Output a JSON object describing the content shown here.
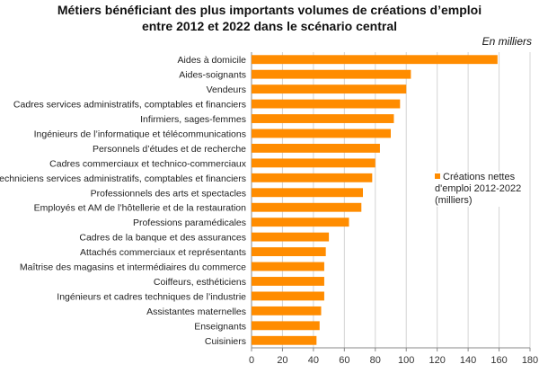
{
  "chart_data": {
    "type": "bar",
    "orientation": "horizontal",
    "title": [
      "Métiers bénéficiant des plus importants volumes de créations d’emploi",
      "entre 2012 et 2022 dans le scénario central"
    ],
    "unit_note": "En milliers",
    "xlabel": "",
    "ylabel": "",
    "xlim": [
      0,
      180
    ],
    "xticks": [
      "0",
      "20",
      "40",
      "60",
      "80",
      "100",
      "120",
      "140",
      "160",
      "180"
    ],
    "grid": true,
    "legend": {
      "position": "right",
      "label": "Créations nettes d'emploi 2012-2022 (milliers)"
    },
    "color": "#FF8C00",
    "categories": [
      "Aides à domicile",
      "Aides-soignants",
      "Vendeurs",
      "Cadres services administratifs, comptables et financiers",
      "Infirmiers, sages-femmes",
      "Ingénieurs de l’informatique et télécommunications",
      "Personnels d’études et de recherche",
      "Cadres commerciaux et technico-commerciaux",
      "Techniciens services administratifs, comptables et financiers",
      "Professionnels des arts et spectacles",
      "Employés et AM de l’hôtellerie et de la restauration",
      "Professions paramédicales",
      "Cadres de la banque et des assurances",
      "Attachés commerciaux et représentants",
      "Maîtrise des magasins et intermédiaires du commerce",
      "Coiffeurs, esthéticiens",
      "Ingénieurs et cadres techniques de l’industrie",
      "Assistantes maternelles",
      "Enseignants",
      "Cuisiniers"
    ],
    "values": [
      159,
      103,
      100,
      96,
      92,
      90,
      83,
      80,
      78,
      72,
      71,
      63,
      50,
      48,
      47,
      47,
      47,
      45,
      44,
      42
    ]
  }
}
